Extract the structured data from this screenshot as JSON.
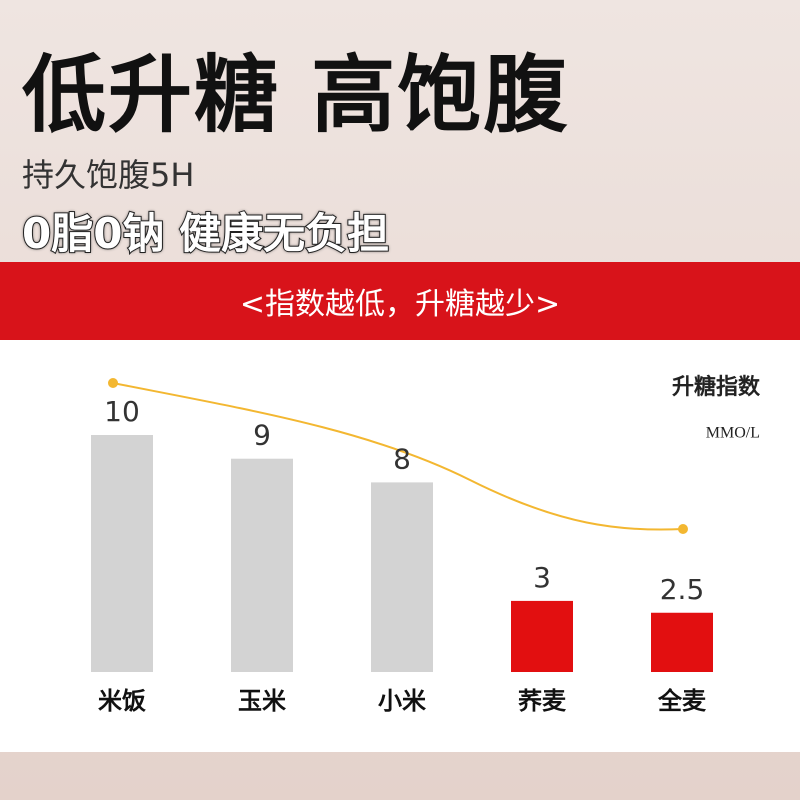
{
  "header": {
    "title": "低升糖 高饱腹",
    "subtitle": "持久饱腹5H",
    "tagline": "0脂0钠 健康无负担"
  },
  "banner": "<指数越低，升糖越少>",
  "chart_data": {
    "type": "bar",
    "ylabel": "升糖指数",
    "unit": "MMO/L",
    "categories": [
      "米饭",
      "玉米",
      "小米",
      "荞麦",
      "全麦"
    ],
    "values": [
      10,
      9,
      8,
      3,
      2.5
    ],
    "colors": [
      "#d3d3d3",
      "#d3d3d3",
      "#d3d3d3",
      "#e20f10",
      "#e20f10"
    ]
  }
}
